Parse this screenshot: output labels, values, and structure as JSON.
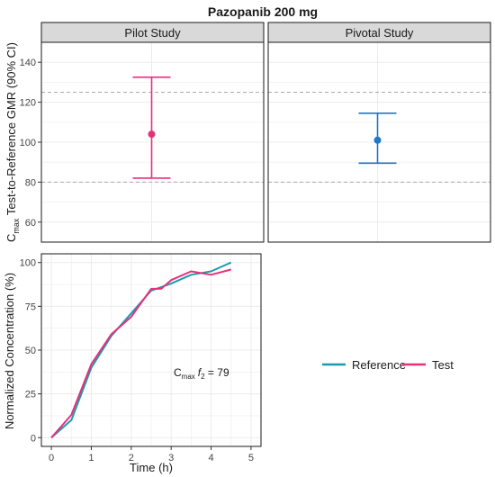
{
  "figure": {
    "title": "Pazopanib 200 mg"
  },
  "colors": {
    "test": "#e7307a",
    "reference": "#1a9bb0",
    "pivotal_point": "#1f78c8",
    "strip_bg": "#d9d9d9",
    "grid": "#ececec",
    "ref_line": "#aaaaaa"
  },
  "chart_data": [
    {
      "type": "scatter",
      "subtype": "point-range (errorbar) faceted",
      "ylabel_main": "C",
      "ylabel_sub": "max",
      "ylabel_rest": " Test-to-Reference GMR (90% CI)",
      "ylim": [
        50,
        150
      ],
      "yticks": [
        60,
        80,
        100,
        120,
        140
      ],
      "reference_lines": [
        80,
        125
      ],
      "grid": true,
      "facets": [
        {
          "label": "Pilot Study",
          "estimate": 104,
          "lower": 82,
          "upper": 132.5,
          "color": "#e7307a"
        },
        {
          "label": "Pivotal Study",
          "estimate": 101,
          "lower": 89.5,
          "upper": 114.5,
          "color": "#1f78c8"
        }
      ]
    },
    {
      "type": "line",
      "xlabel": "Time (h)",
      "ylabel": "Normalized Concentration (%)",
      "xlim": [
        -0.25,
        5.25
      ],
      "ylim": [
        -5,
        105
      ],
      "xticks": [
        0,
        1,
        2,
        3,
        4,
        5
      ],
      "yticks": [
        0,
        25,
        50,
        75,
        100
      ],
      "grid": true,
      "legend_position": "right",
      "annotation": {
        "prefix": "C",
        "prefix_sub": "max",
        "f_symbol": "f",
        "f_sub": "2",
        "value": " = 79"
      },
      "series": [
        {
          "name": "Reference",
          "color": "#1a9bb0",
          "x": [
            0,
            0.5,
            1,
            1.5,
            2,
            2.5,
            3,
            3.5,
            4,
            4.5
          ],
          "y": [
            0,
            10,
            40,
            58,
            71,
            84,
            88,
            93,
            95,
            100
          ]
        },
        {
          "name": "Test",
          "color": "#e7307a",
          "x": [
            0,
            0.5,
            1,
            1.5,
            2,
            2.5,
            2.75,
            3,
            3.5,
            4,
            4.5
          ],
          "y": [
            0,
            13,
            42,
            59,
            69,
            85,
            85,
            90,
            95,
            93,
            96
          ]
        }
      ]
    }
  ]
}
